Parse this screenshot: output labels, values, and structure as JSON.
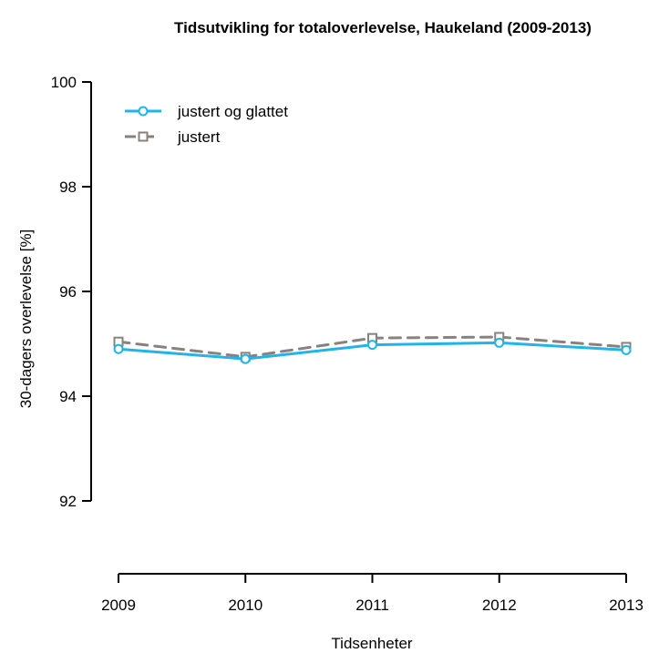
{
  "chart_data": {
    "type": "line",
    "title": "Tidsutvikling for totaloverlevelse, Haukeland (2009-2013)",
    "xlabel": "Tidsenheter",
    "ylabel": "30-dagers overlevelse [%]",
    "categories": [
      "2009",
      "2010",
      "2011",
      "2012",
      "2013"
    ],
    "ylim": [
      90.8,
      100
    ],
    "yticks": [
      92,
      94,
      96,
      98,
      100
    ],
    "grid": false,
    "legend_position": "top-left",
    "series": [
      {
        "name": "justert og glattet",
        "values": [
          94.9,
          94.71,
          94.98,
          95.02,
          94.88
        ],
        "color": "#22b4e6",
        "line_style": "solid",
        "marker": "circle"
      },
      {
        "name": "justert",
        "values": [
          95.04,
          94.75,
          95.11,
          95.13,
          94.94
        ],
        "color": "#8a817c",
        "line_style": "dashed",
        "marker": "square"
      }
    ]
  }
}
